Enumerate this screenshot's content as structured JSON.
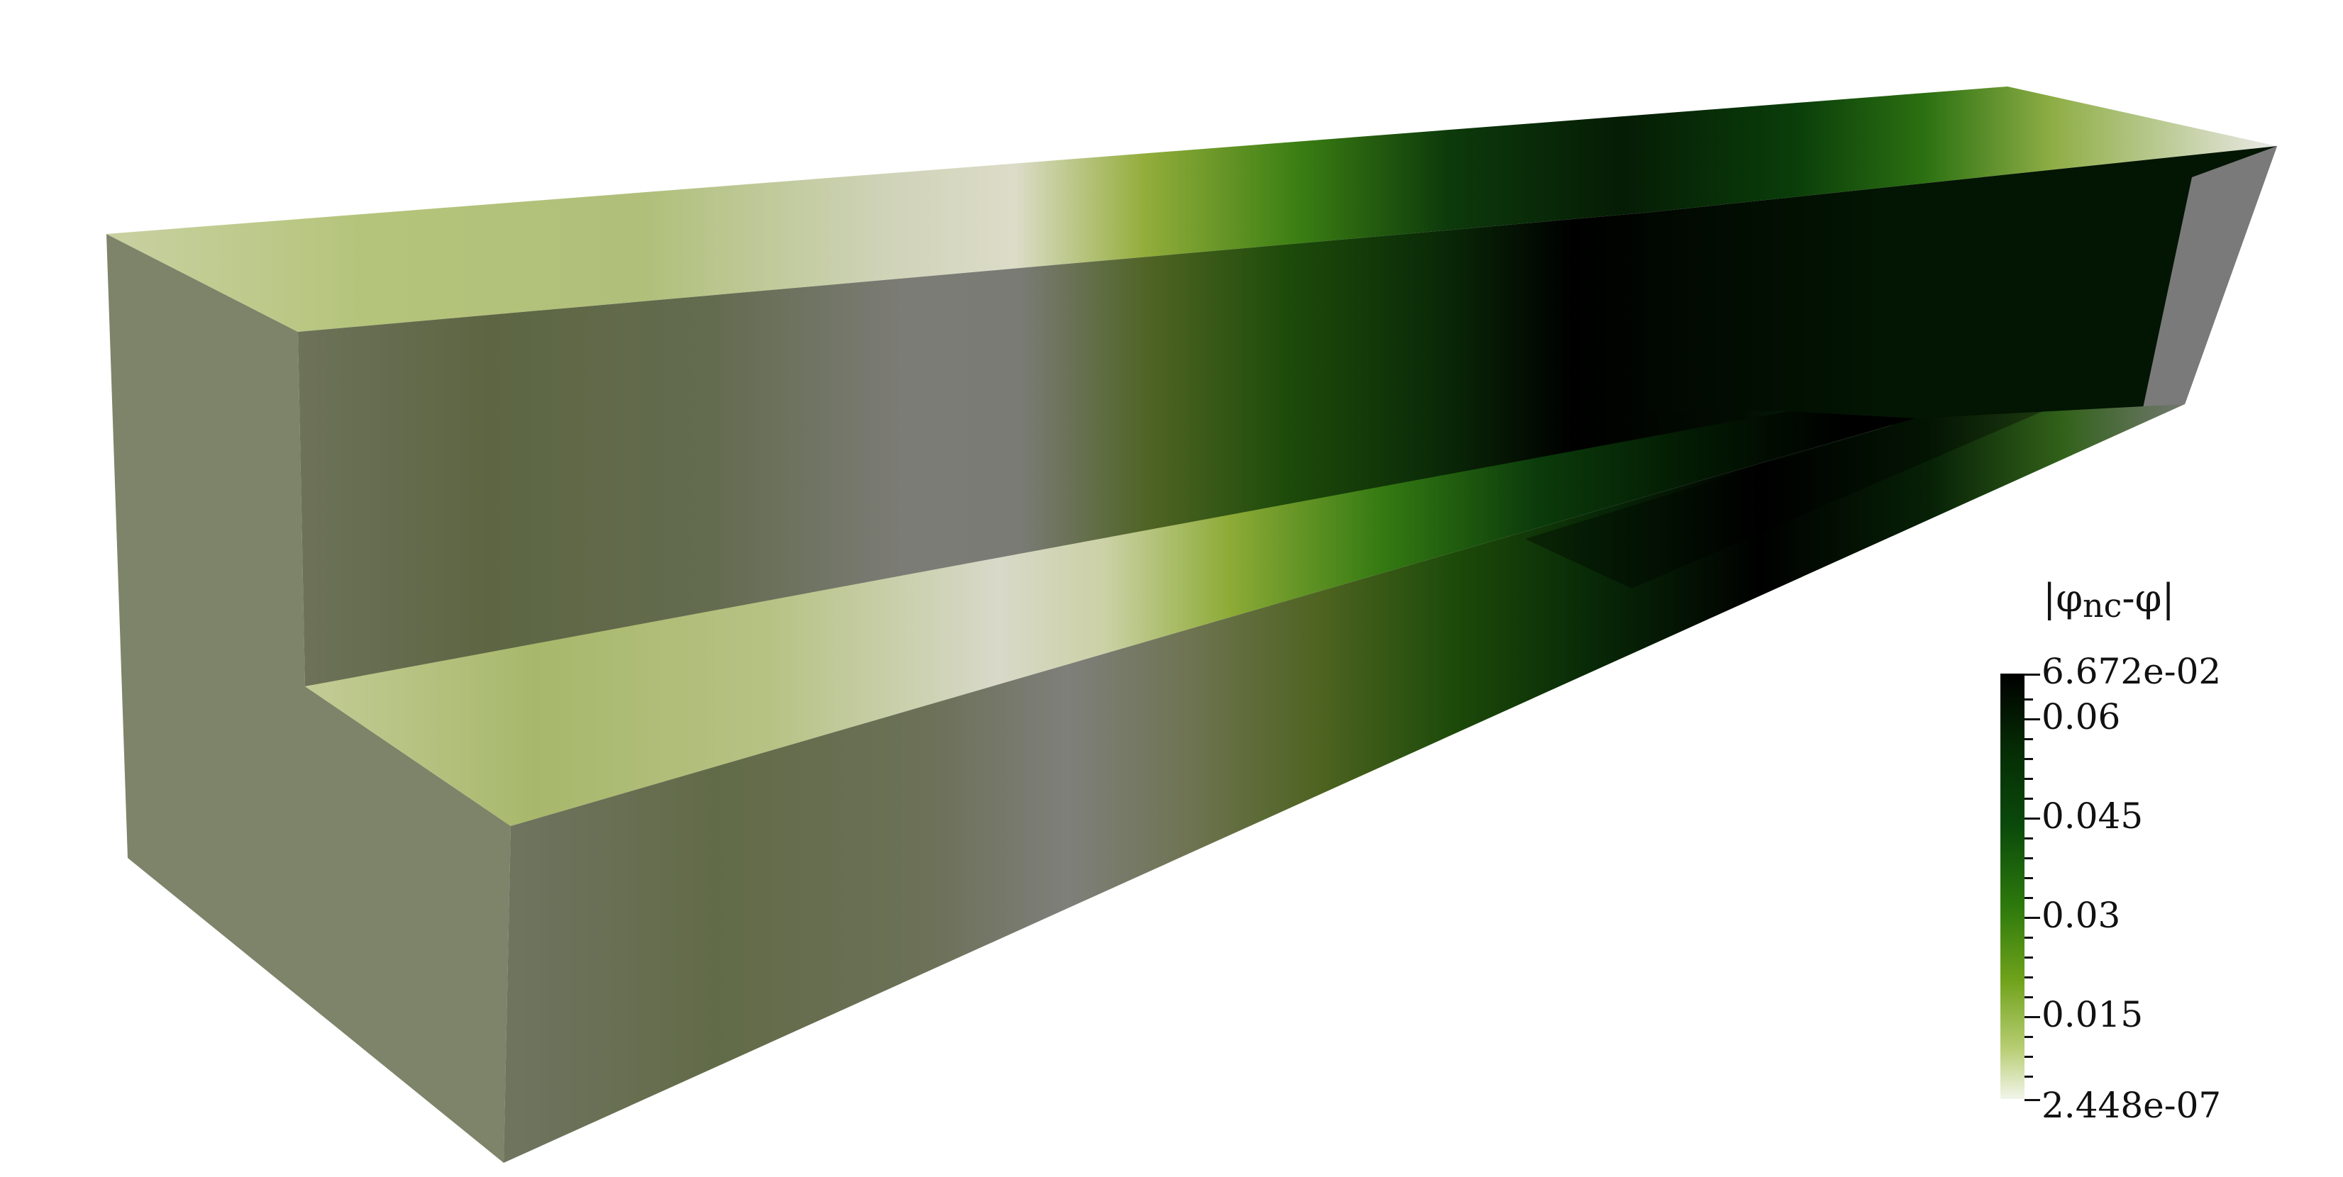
{
  "scalar_bar": {
    "title_main": "|φ",
    "title_sub": "nc",
    "title_end": "-φ|",
    "range_max": "6.672e-02",
    "range_min": "2.448e-07",
    "labels": [
      "0.06",
      "0.045",
      "0.03",
      "0.015"
    ],
    "colormap": [
      "#000000",
      "#052c05",
      "#0b4a0b",
      "#2e7a0c",
      "#6fa21b",
      "#b7cd72",
      "#f2f5ea"
    ]
  },
  "render": {
    "background": "#ffffff",
    "object": "3D block with a U-shaped channel, colored by scalar field"
  }
}
